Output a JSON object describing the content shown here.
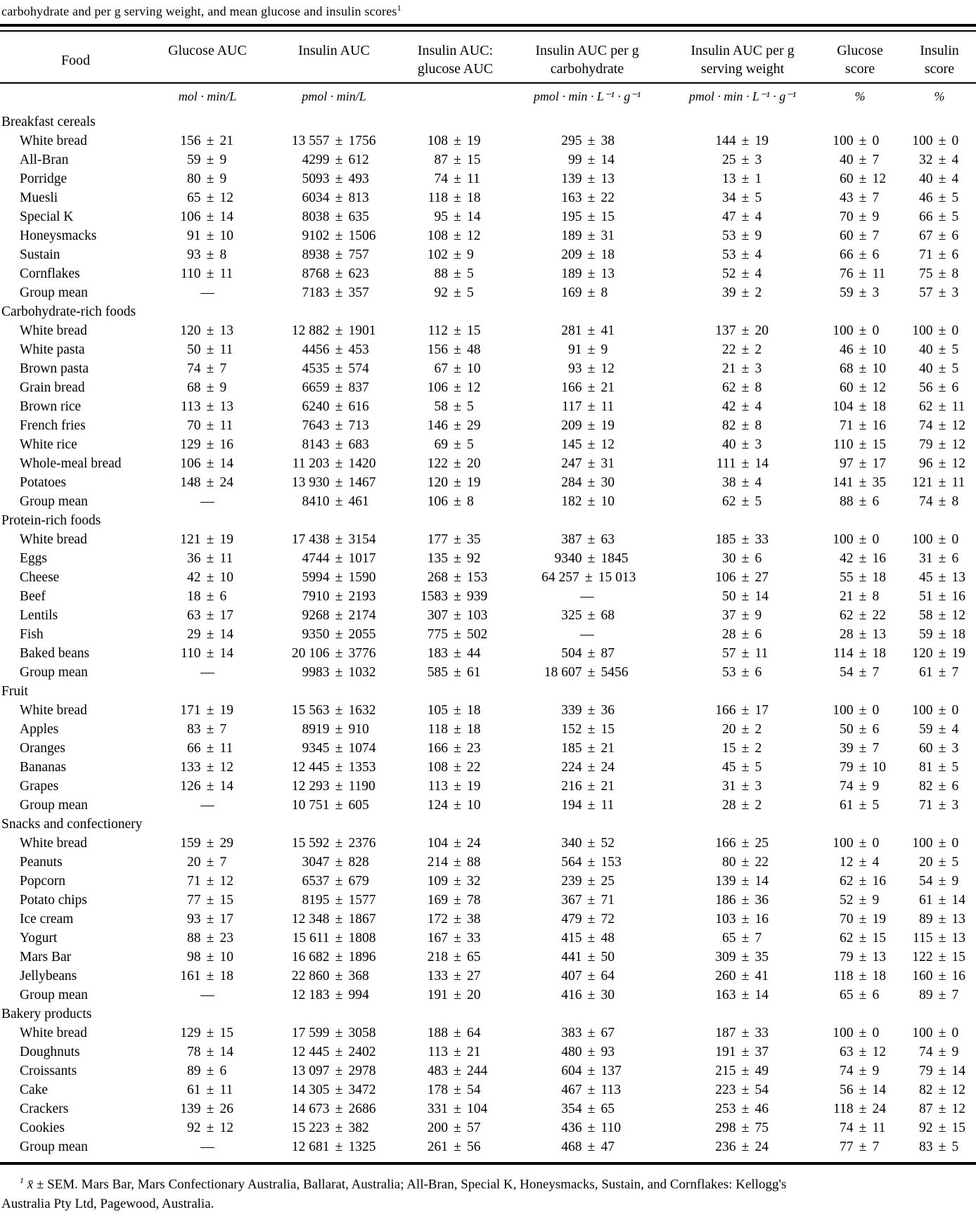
{
  "caption": {
    "text": "carbohydrate and per g serving weight, and mean glucose and insulin scores",
    "marker": "1"
  },
  "table": {
    "col_headers": [
      "Food",
      "Glucose AUC",
      "Insulin AUC",
      "Insulin AUC:\nglucose AUC",
      "Insulin AUC per g\ncarbohydrate",
      "Insulin AUC per g\nserving weight",
      "Glucose\nscore",
      "Insulin\nscore"
    ],
    "units": [
      "",
      "mol · min/L",
      "pmol · min/L",
      "",
      "pmol · min · L⁻¹ · g⁻¹",
      "pmol · min · L⁻¹ · g⁻¹",
      "%",
      "%"
    ],
    "column_keys": [
      "glucose-auc",
      "insulin-auc",
      "insulin-auc-glucose-auc-ratio",
      "insulin-auc-per-g-carbohydrate",
      "insulin-auc-per-g-serving-weight",
      "glucose-score",
      "insulin-score"
    ],
    "sections": [
      {
        "name": "Breakfast cereals",
        "rows": [
          {
            "food": "White bread",
            "cells": [
              "156 ± 21",
              "13 557 ± 1756",
              "108 ± 19",
              "295 ± 38",
              "144 ± 19",
              "100 ± 0",
              "100 ± 0"
            ]
          },
          {
            "food": "All-Bran",
            "cells": [
              "59 ± 9",
              "4299 ± 612",
              "87 ± 15",
              "99 ± 14",
              "25 ± 3",
              "40 ± 7",
              "32 ± 4"
            ]
          },
          {
            "food": "Porridge",
            "cells": [
              "80 ± 9",
              "5093 ± 493",
              "74 ± 11",
              "139 ± 13",
              "13 ± 1",
              "60 ± 12",
              "40 ± 4"
            ]
          },
          {
            "food": "Muesli",
            "cells": [
              "65 ± 12",
              "6034 ± 813",
              "118 ± 18",
              "163 ± 22",
              "34 ± 5",
              "43 ± 7",
              "46 ± 5"
            ]
          },
          {
            "food": "Special K",
            "cells": [
              "106 ± 14",
              "8038 ± 635",
              "95 ± 14",
              "195 ± 15",
              "47 ± 4",
              "70 ± 9",
              "66 ± 5"
            ]
          },
          {
            "food": "Honeysmacks",
            "cells": [
              "91 ± 10",
              "9102 ± 1506",
              "108 ± 12",
              "189 ± 31",
              "53 ± 9",
              "60 ± 7",
              "67 ± 6"
            ]
          },
          {
            "food": "Sustain",
            "cells": [
              "93 ± 8",
              "8938 ± 757",
              "102 ± 9",
              "209 ± 18",
              "53 ± 4",
              "66 ± 6",
              "71 ± 6"
            ]
          },
          {
            "food": "Cornflakes",
            "cells": [
              "110 ± 11",
              "8768 ± 623",
              "88 ± 5",
              "189 ± 13",
              "52 ± 4",
              "76 ± 11",
              "75 ± 8"
            ]
          },
          {
            "food": "Group mean",
            "cells": [
              "—",
              "7183 ± 357",
              "92 ± 5",
              "169 ± 8",
              "39 ± 2",
              "59 ± 3",
              "57 ± 3"
            ]
          }
        ]
      },
      {
        "name": "Carbohydrate-rich foods",
        "rows": [
          {
            "food": "White bread",
            "cells": [
              "120 ± 13",
              "12 882 ± 1901",
              "112 ± 15",
              "281 ± 41",
              "137 ± 20",
              "100 ± 0",
              "100 ± 0"
            ]
          },
          {
            "food": "White pasta",
            "cells": [
              "50 ± 11",
              "4456 ± 453",
              "156 ± 48",
              "91 ± 9",
              "22 ± 2",
              "46 ± 10",
              "40 ± 5"
            ]
          },
          {
            "food": "Brown pasta",
            "cells": [
              "74 ± 7",
              "4535 ± 574",
              "67 ± 10",
              "93 ± 12",
              "21 ± 3",
              "68 ± 10",
              "40 ± 5"
            ]
          },
          {
            "food": "Grain bread",
            "cells": [
              "68 ± 9",
              "6659 ± 837",
              "106 ± 12",
              "166 ± 21",
              "62 ± 8",
              "60 ± 12",
              "56 ± 6"
            ]
          },
          {
            "food": "Brown rice",
            "cells": [
              "113 ± 13",
              "6240 ± 616",
              "58 ± 5",
              "117 ± 11",
              "42 ± 4",
              "104 ± 18",
              "62 ± 11"
            ]
          },
          {
            "food": "French fries",
            "cells": [
              "70 ± 11",
              "7643 ± 713",
              "146 ± 29",
              "209 ± 19",
              "82 ± 8",
              "71 ± 16",
              "74 ± 12"
            ]
          },
          {
            "food": "White rice",
            "cells": [
              "129 ± 16",
              "8143 ± 683",
              "69 ± 5",
              "145 ± 12",
              "40 ± 3",
              "110 ± 15",
              "79 ± 12"
            ]
          },
          {
            "food": "Whole-meal bread",
            "cells": [
              "106 ± 14",
              "11 203 ± 1420",
              "122 ± 20",
              "247 ± 31",
              "111 ± 14",
              "97 ± 17",
              "96 ± 12"
            ]
          },
          {
            "food": "Potatoes",
            "cells": [
              "148 ± 24",
              "13 930 ± 1467",
              "120 ± 19",
              "284 ± 30",
              "38 ± 4",
              "141 ± 35",
              "121 ± 11"
            ]
          },
          {
            "food": "Group mean",
            "cells": [
              "—",
              "8410 ± 461",
              "106 ± 8",
              "182 ± 10",
              "62 ± 5",
              "88 ± 6",
              "74 ± 8"
            ]
          }
        ]
      },
      {
        "name": "Protein-rich foods",
        "rows": [
          {
            "food": "White bread",
            "cells": [
              "121 ± 19",
              "17 438 ± 3154",
              "177 ± 35",
              "387 ± 63",
              "185 ± 33",
              "100 ± 0",
              "100 ± 0"
            ]
          },
          {
            "food": "Eggs",
            "cells": [
              "36 ± 11",
              "4744 ± 1017",
              "135 ± 92",
              "9340 ± 1845",
              "30 ± 6",
              "42 ± 16",
              "31 ± 6"
            ]
          },
          {
            "food": "Cheese",
            "cells": [
              "42 ± 10",
              "5994 ± 1590",
              "268 ± 153",
              "64 257 ± 15 013",
              "106 ± 27",
              "55 ± 18",
              "45 ± 13"
            ]
          },
          {
            "food": "Beef",
            "cells": [
              "18 ± 6",
              "7910 ± 2193",
              "1583 ± 939",
              "—",
              "50 ± 14",
              "21 ± 8",
              "51 ± 16"
            ]
          },
          {
            "food": "Lentils",
            "cells": [
              "63 ± 17",
              "9268 ± 2174",
              "307 ± 103",
              "325 ± 68",
              "37 ± 9",
              "62 ± 22",
              "58 ± 12"
            ]
          },
          {
            "food": "Fish",
            "cells": [
              "29 ± 14",
              "9350 ± 2055",
              "775 ± 502",
              "—",
              "28 ± 6",
              "28 ± 13",
              "59 ± 18"
            ]
          },
          {
            "food": "Baked beans",
            "cells": [
              "110 ± 14",
              "20 106 ± 3776",
              "183 ± 44",
              "504 ± 87",
              "57 ± 11",
              "114 ± 18",
              "120 ± 19"
            ]
          },
          {
            "food": "Group mean",
            "cells": [
              "—",
              "9983 ± 1032",
              "585 ± 61",
              "18 607 ± 5456",
              "53 ± 6",
              "54 ± 7",
              "61 ± 7"
            ]
          }
        ]
      },
      {
        "name": "Fruit",
        "rows": [
          {
            "food": "White bread",
            "cells": [
              "171 ± 19",
              "15 563 ± 1632",
              "105 ± 18",
              "339 ± 36",
              "166 ± 17",
              "100 ± 0",
              "100 ± 0"
            ]
          },
          {
            "food": "Apples",
            "cells": [
              "83 ± 7",
              "8919 ± 910",
              "118 ± 18",
              "152 ± 15",
              "20 ± 2",
              "50 ± 6",
              "59 ± 4"
            ]
          },
          {
            "food": "Oranges",
            "cells": [
              "66 ± 11",
              "9345 ± 1074",
              "166 ± 23",
              "185 ± 21",
              "15 ± 2",
              "39 ± 7",
              "60 ± 3"
            ]
          },
          {
            "food": "Bananas",
            "cells": [
              "133 ± 12",
              "12 445 ± 1353",
              "108 ± 22",
              "224 ± 24",
              "45 ± 5",
              "79 ± 10",
              "81 ± 5"
            ]
          },
          {
            "food": "Grapes",
            "cells": [
              "126 ± 14",
              "12 293 ± 1190",
              "113 ± 19",
              "216 ± 21",
              "31 ± 3",
              "74 ± 9",
              "82 ± 6"
            ]
          },
          {
            "food": "Group mean",
            "cells": [
              "—",
              "10 751 ± 605",
              "124 ± 10",
              "194 ± 11",
              "28 ± 2",
              "61 ± 5",
              "71 ± 3"
            ]
          }
        ]
      },
      {
        "name": "Snacks and confectionery",
        "rows": [
          {
            "food": "White bread",
            "cells": [
              "159 ± 29",
              "15 592 ± 2376",
              "104 ± 24",
              "340 ± 52",
              "166 ± 25",
              "100 ± 0",
              "100 ± 0"
            ]
          },
          {
            "food": "Peanuts",
            "cells": [
              "20 ± 7",
              "3047 ± 828",
              "214 ± 88",
              "564 ± 153",
              "80 ± 22",
              "12 ± 4",
              "20 ± 5"
            ]
          },
          {
            "food": "Popcorn",
            "cells": [
              "71 ± 12",
              "6537 ± 679",
              "109 ± 32",
              "239 ± 25",
              "139 ± 14",
              "62 ± 16",
              "54 ± 9"
            ]
          },
          {
            "food": "Potato chips",
            "cells": [
              "77 ± 15",
              "8195 ± 1577",
              "169 ± 78",
              "367 ± 71",
              "186 ± 36",
              "52 ± 9",
              "61 ± 14"
            ]
          },
          {
            "food": "Ice cream",
            "cells": [
              "93 ± 17",
              "12 348 ± 1867",
              "172 ± 38",
              "479 ± 72",
              "103 ± 16",
              "70 ± 19",
              "89 ± 13"
            ]
          },
          {
            "food": "Yogurt",
            "cells": [
              "88 ± 23",
              "15 611 ± 1808",
              "167 ± 33",
              "415 ± 48",
              "65 ± 7",
              "62 ± 15",
              "115 ± 13"
            ]
          },
          {
            "food": "Mars Bar",
            "cells": [
              "98 ± 10",
              "16 682 ± 1896",
              "218 ± 65",
              "441 ± 50",
              "309 ± 35",
              "79 ± 13",
              "122 ± 15"
            ]
          },
          {
            "food": "Jellybeans",
            "cells": [
              "161 ± 18",
              "22 860 ± 368",
              "133 ± 27",
              "407 ± 64",
              "260 ± 41",
              "118 ± 18",
              "160 ± 16"
            ]
          },
          {
            "food": "Group mean",
            "cells": [
              "—",
              "12 183 ± 994",
              "191 ± 20",
              "416 ± 30",
              "163 ± 14",
              "65 ± 6",
              "89 ± 7"
            ]
          }
        ]
      },
      {
        "name": "Bakery products",
        "rows": [
          {
            "food": "White bread",
            "cells": [
              "129 ± 15",
              "17 599 ± 3058",
              "188 ± 64",
              "383 ± 67",
              "187 ± 33",
              "100 ± 0",
              "100 ± 0"
            ]
          },
          {
            "food": "Doughnuts",
            "cells": [
              "78 ± 14",
              "12 445 ± 2402",
              "113 ± 21",
              "480 ± 93",
              "191 ± 37",
              "63 ± 12",
              "74 ± 9"
            ]
          },
          {
            "food": "Croissants",
            "cells": [
              "89 ± 6",
              "13 097 ± 2978",
              "483 ± 244",
              "604 ± 137",
              "215 ± 49",
              "74 ± 9",
              "79 ± 14"
            ]
          },
          {
            "food": "Cake",
            "cells": [
              "61 ± 11",
              "14 305 ± 3472",
              "178 ± 54",
              "467 ± 113",
              "223 ± 54",
              "56 ± 14",
              "82 ± 12"
            ]
          },
          {
            "food": "Crackers",
            "cells": [
              "139 ± 26",
              "14 673 ± 2686",
              "331 ± 104",
              "354 ± 65",
              "253 ± 46",
              "118 ± 24",
              "87 ± 12"
            ]
          },
          {
            "food": "Cookies",
            "cells": [
              "92 ± 12",
              "15 223 ± 382",
              "200 ± 57",
              "436 ± 110",
              "298 ± 75",
              "74 ± 11",
              "92 ± 15"
            ]
          },
          {
            "food": "Group mean",
            "cells": [
              "—",
              "12 681 ± 1325",
              "261 ± 56",
              "468 ± 47",
              "236 ± 24",
              "77 ± 7",
              "83 ± 5"
            ]
          }
        ]
      }
    ]
  },
  "footnote": {
    "marker": "1",
    "mean_symbol": "x̄",
    "text_line1": "± SEM. Mars Bar, Mars Confectionary Australia, Ballarat, Australia; All-Bran, Special K, Honeysmacks, Sustain, and Cornflakes: Kellogg's",
    "text_line2": "Australia Pty Ltd, Pagewood, Australia."
  }
}
